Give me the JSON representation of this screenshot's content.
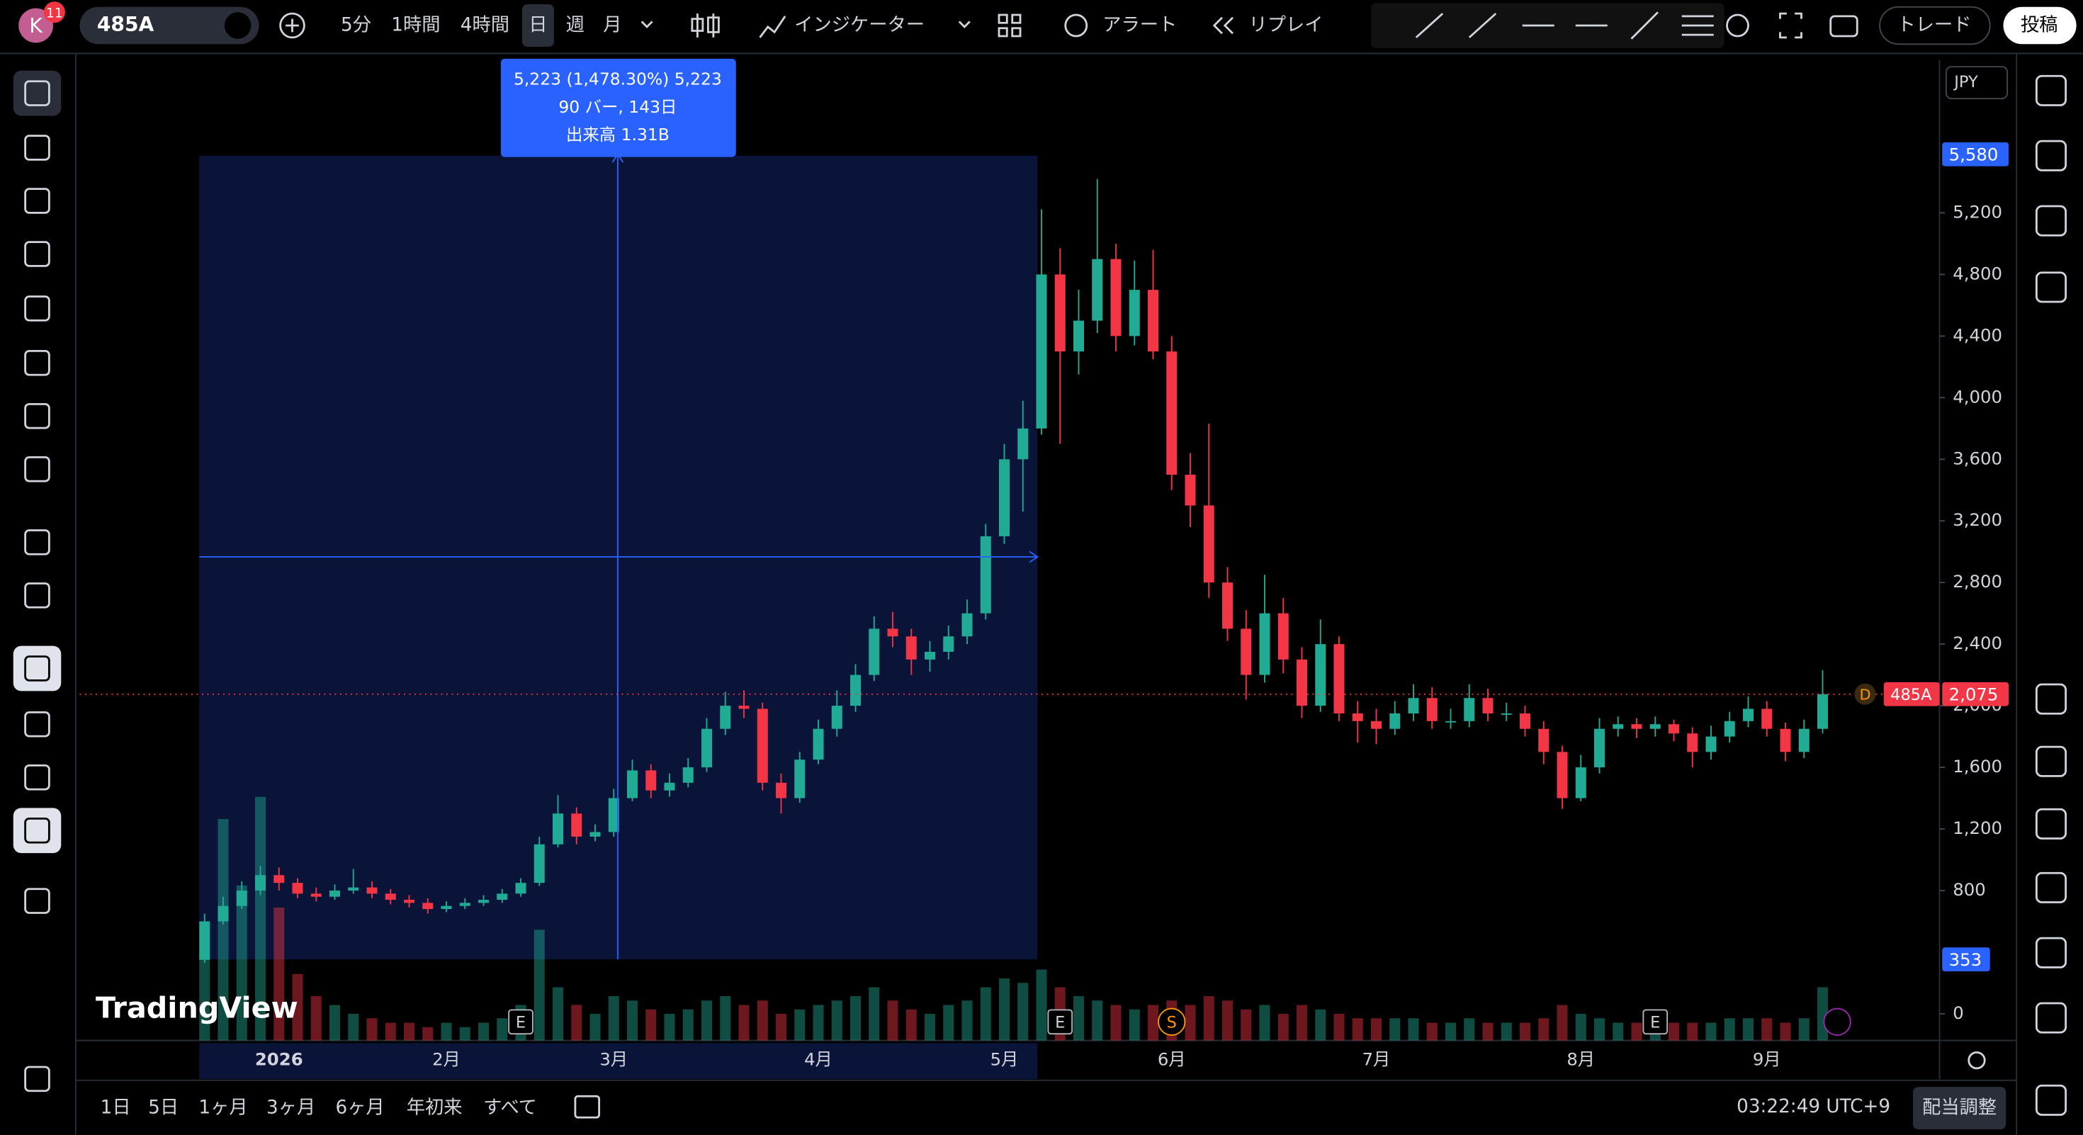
{
  "toolbar": {
    "avatar": "K",
    "badge": "11",
    "symbol": "485A",
    "intervals": [
      "5分",
      "1時間",
      "4時間",
      "日",
      "週",
      "月"
    ],
    "indicators": "インジケーター",
    "alerts": "アラート",
    "replay": "リプレイ",
    "trade": "トレード",
    "publish": "投稿"
  },
  "chart_data": {
    "type": "candlestick",
    "currency": "JPY",
    "watermark": "TradingView",
    "categories": [
      null,
      null,
      null,
      null,
      "2026",
      null,
      null,
      null,
      null,
      null,
      null,
      null,
      null,
      "2月",
      null,
      null,
      null,
      null,
      null,
      null,
      null,
      null,
      "3月",
      null,
      null,
      null,
      null,
      null,
      null,
      null,
      null,
      null,
      null,
      "4月",
      null,
      null,
      null,
      null,
      null,
      null,
      null,
      null,
      null,
      "5月",
      null,
      null,
      null,
      null,
      null,
      null,
      null,
      null,
      "6月",
      null,
      null,
      null,
      null,
      null,
      null,
      null,
      null,
      null,
      null,
      "7月",
      null,
      null,
      null,
      null,
      null,
      null,
      null,
      null,
      null,
      null,
      "8月",
      null,
      null,
      null,
      null,
      null,
      null,
      null,
      null,
      null,
      "9月",
      null,
      null,
      null
    ],
    "open": [
      350,
      600,
      700,
      800,
      900,
      850,
      780,
      760,
      800,
      820,
      780,
      740,
      720,
      680,
      700,
      720,
      740,
      780,
      850,
      1100,
      1300,
      1150,
      1180,
      1400,
      1580,
      1450,
      1500,
      1600,
      1850,
      2000,
      1980,
      1500,
      1400,
      1650,
      1850,
      2000,
      2200,
      2500,
      2450,
      2300,
      2350,
      2450,
      2600,
      3100,
      3600,
      3800,
      4800,
      4300,
      4500,
      4900,
      4400,
      4700,
      4300,
      3500,
      3300,
      2800,
      2500,
      2200,
      2600,
      2300,
      2000,
      2400,
      1950,
      1900,
      1850,
      1950,
      2050,
      1900,
      1900,
      2050,
      1950,
      1950,
      1850,
      1700,
      1400,
      1600,
      1850,
      1880,
      1850,
      1880,
      1820,
      1700,
      1800,
      1900,
      1980,
      1850,
      1700,
      1850
    ],
    "high": [
      650,
      760,
      860,
      960,
      950,
      880,
      820,
      840,
      940,
      860,
      810,
      770,
      750,
      730,
      750,
      770,
      810,
      880,
      1150,
      1420,
      1340,
      1230,
      1460,
      1650,
      1620,
      1560,
      1660,
      1920,
      2090,
      2100,
      2020,
      1560,
      1700,
      1910,
      2100,
      2270,
      2580,
      2610,
      2500,
      2420,
      2520,
      2690,
      3180,
      3700,
      3980,
      5223,
      4970,
      4700,
      5420,
      5000,
      4890,
      4960,
      4400,
      3640,
      3830,
      2900,
      2620,
      2850,
      2700,
      2380,
      2560,
      2450,
      2030,
      1980,
      2030,
      2140,
      2120,
      1980,
      2140,
      2110,
      2020,
      2000,
      1900,
      1740,
      1680,
      1920,
      1930,
      1920,
      1930,
      1910,
      1860,
      1870,
      1960,
      2060,
      2030,
      1890,
      1910,
      2230
    ],
    "low": [
      330,
      580,
      680,
      770,
      800,
      750,
      730,
      740,
      780,
      750,
      710,
      690,
      650,
      660,
      680,
      700,
      720,
      760,
      830,
      1080,
      1100,
      1120,
      1150,
      1380,
      1400,
      1410,
      1470,
      1570,
      1810,
      1920,
      1450,
      1300,
      1370,
      1620,
      1800,
      1960,
      2160,
      2380,
      2200,
      2220,
      2300,
      2400,
      2560,
      3050,
      3260,
      3760,
      3700,
      4150,
      4420,
      4300,
      4340,
      4250,
      3400,
      3160,
      2700,
      2420,
      2040,
      2150,
      2210,
      1920,
      1960,
      1900,
      1760,
      1750,
      1810,
      1900,
      1850,
      1850,
      1860,
      1900,
      1900,
      1800,
      1620,
      1330,
      1380,
      1560,
      1800,
      1790,
      1800,
      1770,
      1600,
      1650,
      1760,
      1860,
      1800,
      1640,
      1660,
      1820
    ],
    "close": [
      600,
      700,
      800,
      900,
      850,
      780,
      760,
      800,
      820,
      780,
      740,
      720,
      680,
      700,
      720,
      740,
      780,
      850,
      1100,
      1300,
      1150,
      1180,
      1400,
      1580,
      1450,
      1500,
      1600,
      1850,
      2000,
      1980,
      1500,
      1400,
      1650,
      1850,
      2000,
      2200,
      2500,
      2450,
      2300,
      2350,
      2450,
      2600,
      3100,
      3600,
      3800,
      4800,
      4300,
      4500,
      4900,
      4400,
      4700,
      4300,
      3500,
      3300,
      2800,
      2500,
      2200,
      2600,
      2300,
      2000,
      2400,
      1950,
      1900,
      1850,
      1950,
      2050,
      1900,
      1900,
      2050,
      1950,
      1950,
      1850,
      1700,
      1400,
      1600,
      1850,
      1880,
      1850,
      1880,
      1820,
      1700,
      1800,
      1900,
      1980,
      1850,
      1700,
      1850,
      2075
    ],
    "volume": [
      20,
      50,
      35,
      55,
      30,
      15,
      10,
      8,
      6,
      5,
      4,
      4,
      3,
      4,
      3,
      4,
      5,
      8,
      25,
      12,
      8,
      6,
      10,
      9,
      7,
      6,
      7,
      9,
      10,
      8,
      9,
      6,
      7,
      8,
      9,
      10,
      12,
      9,
      7,
      6,
      8,
      9,
      12,
      14,
      13,
      16,
      12,
      10,
      9,
      8,
      7,
      8,
      9,
      8,
      10,
      9,
      7,
      8,
      6,
      8,
      7,
      6,
      5,
      5,
      5,
      5,
      4,
      4,
      5,
      4,
      4,
      4,
      5,
      8,
      6,
      5,
      4,
      4,
      4,
      4,
      4,
      4,
      5,
      5,
      5,
      4,
      5,
      12
    ],
    "vlim": [
      0,
      60
    ],
    "up_color": "#22ab94",
    "down_color": "#f23645",
    "ylim": [
      -173,
      6192
    ],
    "yticks": [
      0,
      800,
      {
        "value": 1200,
        "label": "1,200"
      },
      {
        "value": 1600,
        "label": "1,600"
      },
      {
        "value": 2000,
        "label": "2,000"
      },
      {
        "value": 2400,
        "label": "2,400"
      },
      {
        "value": 2800,
        "label": "2,800"
      },
      {
        "value": 3200,
        "label": "3,200"
      },
      {
        "value": 3600,
        "label": "3,600"
      },
      {
        "value": 4000,
        "label": "4,000"
      },
      {
        "value": 4400,
        "label": "4,400"
      },
      {
        "value": 4800,
        "label": "4,800"
      },
      {
        "value": 5200,
        "label": "5,200"
      }
    ],
    "measure": {
      "high": {
        "value": 5580,
        "label": "5,580"
      },
      "low": 353,
      "tooltip": [
        "5,223 (1,478.30%) 5,223",
        "90 バー, 143日",
        "出来高 1.31B"
      ]
    },
    "last_price": {
      "value": 2075,
      "label": "2,075"
    },
    "last_marker": "D",
    "events": [
      {
        "bar": 17,
        "label": "E"
      },
      {
        "bar": 46,
        "label": "E"
      },
      {
        "bar": 52,
        "label": "S"
      },
      {
        "bar": 78,
        "label": "E"
      }
    ]
  },
  "bottom": {
    "ranges": [
      "1日",
      "5日",
      "1ヶ月",
      "3ヶ月",
      "6ヶ月",
      "年初来",
      "すべて"
    ],
    "clock": "03:22:49 UTC+9",
    "adjust": "配当調整"
  }
}
